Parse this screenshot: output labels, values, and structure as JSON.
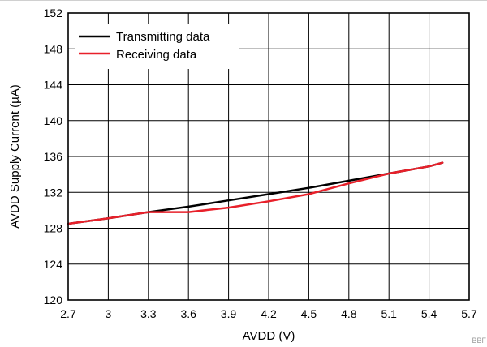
{
  "chart_data": {
    "type": "line",
    "xlabel": "AVDD (V)",
    "ylabel": "AVDD Supply Current (µA)",
    "xlim": [
      2.7,
      5.7
    ],
    "ylim": [
      120,
      152
    ],
    "x_ticks": [
      2.7,
      3,
      3.3,
      3.6,
      3.9,
      4.2,
      4.5,
      4.8,
      5.1,
      5.4,
      5.7
    ],
    "x_tick_labels": [
      "2.7",
      "3",
      "3.3",
      "3.6",
      "3.9",
      "4.2",
      "4.5",
      "4.8",
      "5.1",
      "5.4",
      "5.7"
    ],
    "y_ticks": [
      120,
      124,
      128,
      132,
      136,
      140,
      144,
      148,
      152
    ],
    "y_tick_labels": [
      "120",
      "124",
      "128",
      "132",
      "136",
      "140",
      "144",
      "148",
      "152"
    ],
    "grid": true,
    "legend_position": "top-left",
    "series": [
      {
        "name": "Transmitting data",
        "color": "#000000",
        "points": [
          [
            2.7,
            128.5
          ],
          [
            3.0,
            129.1
          ],
          [
            3.3,
            129.8
          ],
          [
            3.6,
            130.4
          ],
          [
            3.9,
            131.1
          ],
          [
            4.2,
            131.8
          ],
          [
            4.5,
            132.5
          ],
          [
            4.8,
            133.3
          ],
          [
            5.1,
            134.1
          ],
          [
            5.4,
            134.9
          ],
          [
            5.5,
            135.3
          ]
        ]
      },
      {
        "name": "Receiving data",
        "color": "#e8202a",
        "points": [
          [
            2.7,
            128.5
          ],
          [
            3.0,
            129.1
          ],
          [
            3.3,
            129.8
          ],
          [
            3.6,
            129.8
          ],
          [
            3.9,
            130.3
          ],
          [
            4.2,
            131.0
          ],
          [
            4.5,
            131.8
          ],
          [
            4.8,
            133.0
          ],
          [
            5.1,
            134.1
          ],
          [
            5.4,
            134.9
          ],
          [
            5.5,
            135.3
          ]
        ]
      }
    ]
  },
  "figure_code": "BBF"
}
